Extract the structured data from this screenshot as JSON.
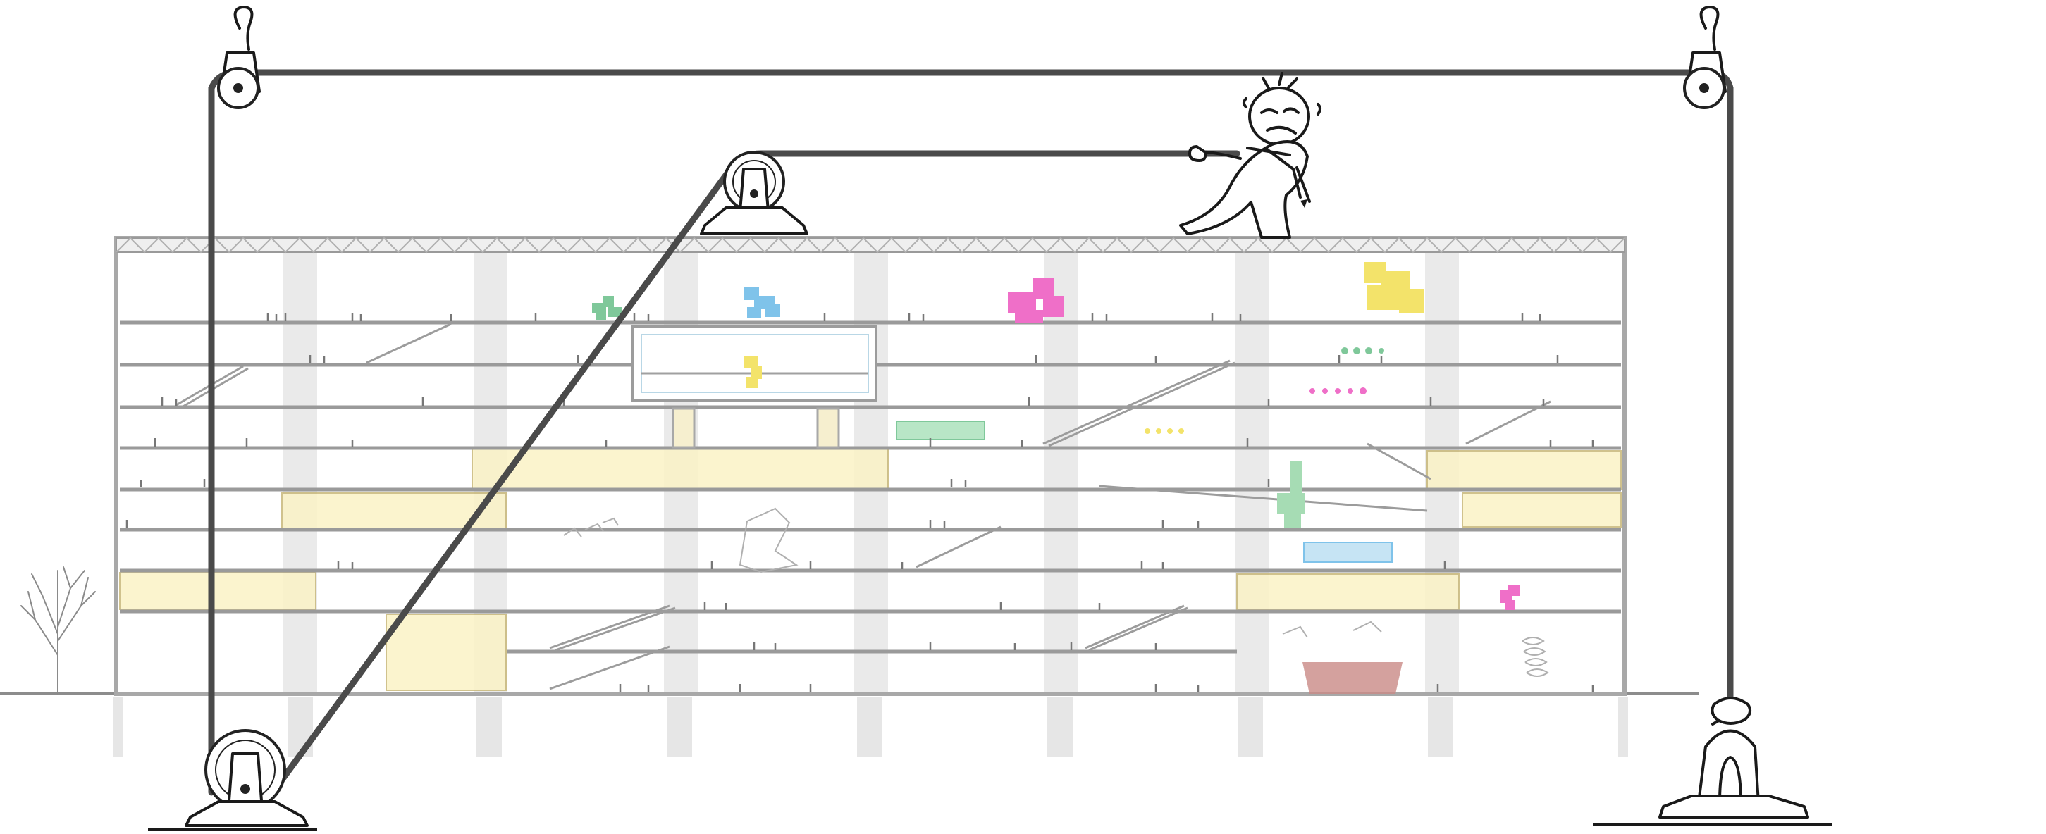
{
  "diagram": {
    "subject": "section-drawing-with-pulley-system",
    "colors": {
      "rope": "#4a4a4a",
      "floor_line": "#9a9a9a",
      "column": "#d8d8d8",
      "gallery_yellow": "#fbf3c6",
      "pixel_green": "#7fc89a",
      "pixel_blue": "#7fc3ea",
      "pixel_magenta": "#ef6fc8",
      "pixel_yellow": "#f3e36a",
      "exhibit_red": "#c98a86"
    },
    "icons": [
      "pulley-icon",
      "hook-icon",
      "anchor-cleat-icon",
      "tree-icon",
      "cartoon-figure-icon"
    ]
  }
}
